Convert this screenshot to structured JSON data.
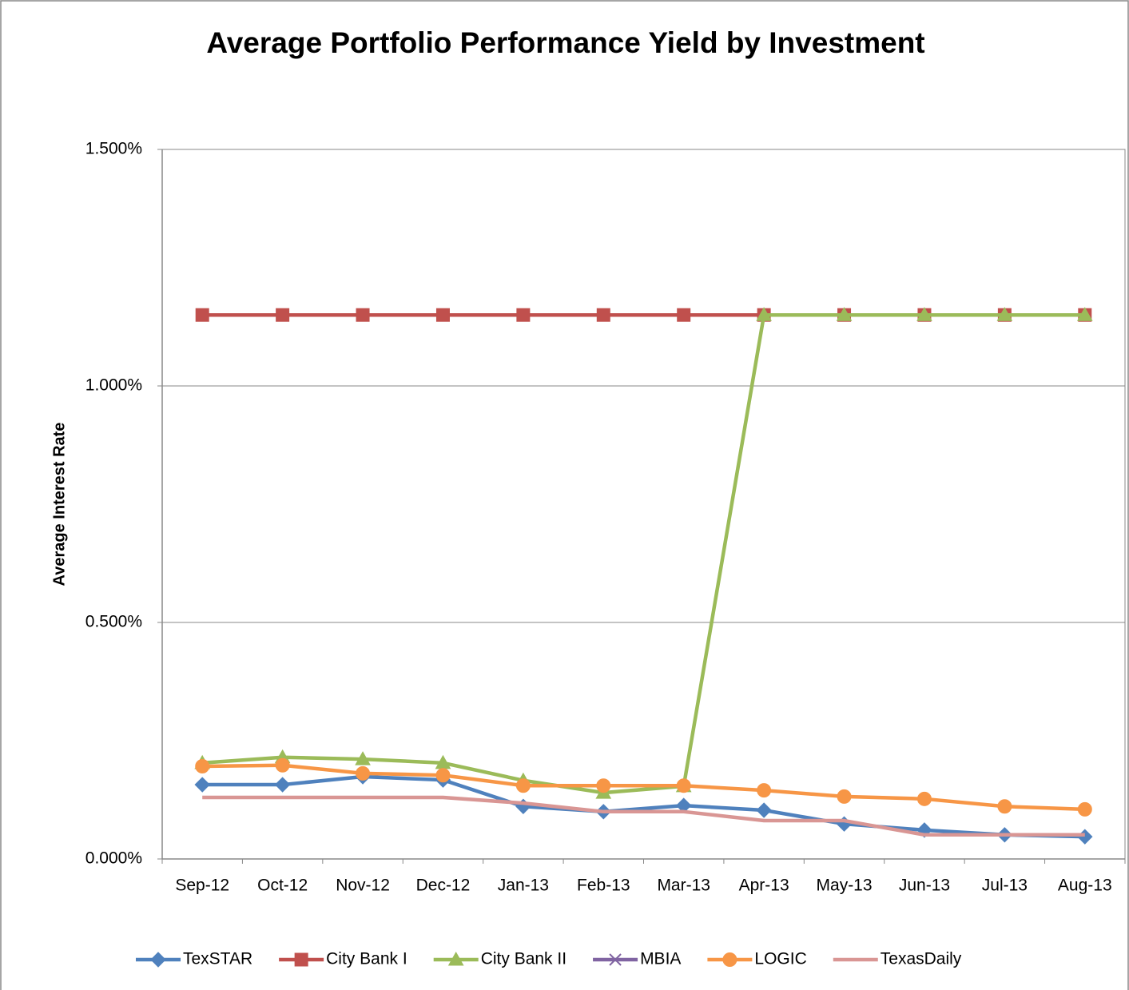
{
  "chart_data": {
    "type": "line",
    "title": "Average Portfolio Performance Yield by Investment",
    "y_label": "Average Interest Rate",
    "categories": [
      "Sep-12",
      "Oct-12",
      "Nov-12",
      "Dec-12",
      "Jan-13",
      "Feb-13",
      "Mar-13",
      "Apr-13",
      "May-13",
      "Jun-13",
      "Jul-13",
      "Aug-13"
    ],
    "ylim": [
      0,
      1.5
    ],
    "yticks": [
      {
        "value": 0,
        "label": "0.000%"
      },
      {
        "value": 0.5,
        "label": "0.500%"
      },
      {
        "value": 1.0,
        "label": "1.000%"
      },
      {
        "value": 1.5,
        "label": "1.500%"
      }
    ],
    "grid": true,
    "legend": "bottom",
    "series": [
      {
        "name": "TexSTAR",
        "color": "#4f81bd",
        "marker": "diamond",
        "values": [
          0.157,
          0.157,
          0.174,
          0.167,
          0.111,
          0.1,
          0.113,
          0.103,
          0.074,
          0.061,
          0.051,
          0.047
        ]
      },
      {
        "name": "City Bank I",
        "color": "#c0504d",
        "marker": "square",
        "values": [
          1.15,
          1.15,
          1.15,
          1.15,
          1.15,
          1.15,
          1.15,
          1.15,
          1.15,
          1.15,
          1.15,
          1.15
        ]
      },
      {
        "name": "City Bank II",
        "color": "#9bbb59",
        "marker": "triangle",
        "values": [
          0.203,
          0.215,
          0.211,
          0.203,
          0.166,
          0.14,
          0.154,
          1.15,
          1.15,
          1.15,
          1.15,
          1.15
        ]
      },
      {
        "name": "MBIA",
        "color": "#8064a2",
        "marker": "x",
        "values": [
          null,
          null,
          null,
          null,
          null,
          null,
          null,
          null,
          null,
          null,
          null,
          null
        ]
      },
      {
        "name": "LOGIC",
        "color": "#f79646",
        "marker": "circle",
        "values": [
          0.196,
          0.198,
          0.181,
          0.177,
          0.155,
          0.155,
          0.155,
          0.145,
          0.132,
          0.127,
          0.111,
          0.105
        ]
      },
      {
        "name": "TexasDaily",
        "color": "#d99694",
        "marker": "none",
        "values": [
          0.13,
          0.13,
          0.13,
          0.13,
          0.118,
          0.1,
          0.1,
          0.081,
          0.081,
          0.051,
          0.051,
          0.051
        ]
      }
    ]
  }
}
